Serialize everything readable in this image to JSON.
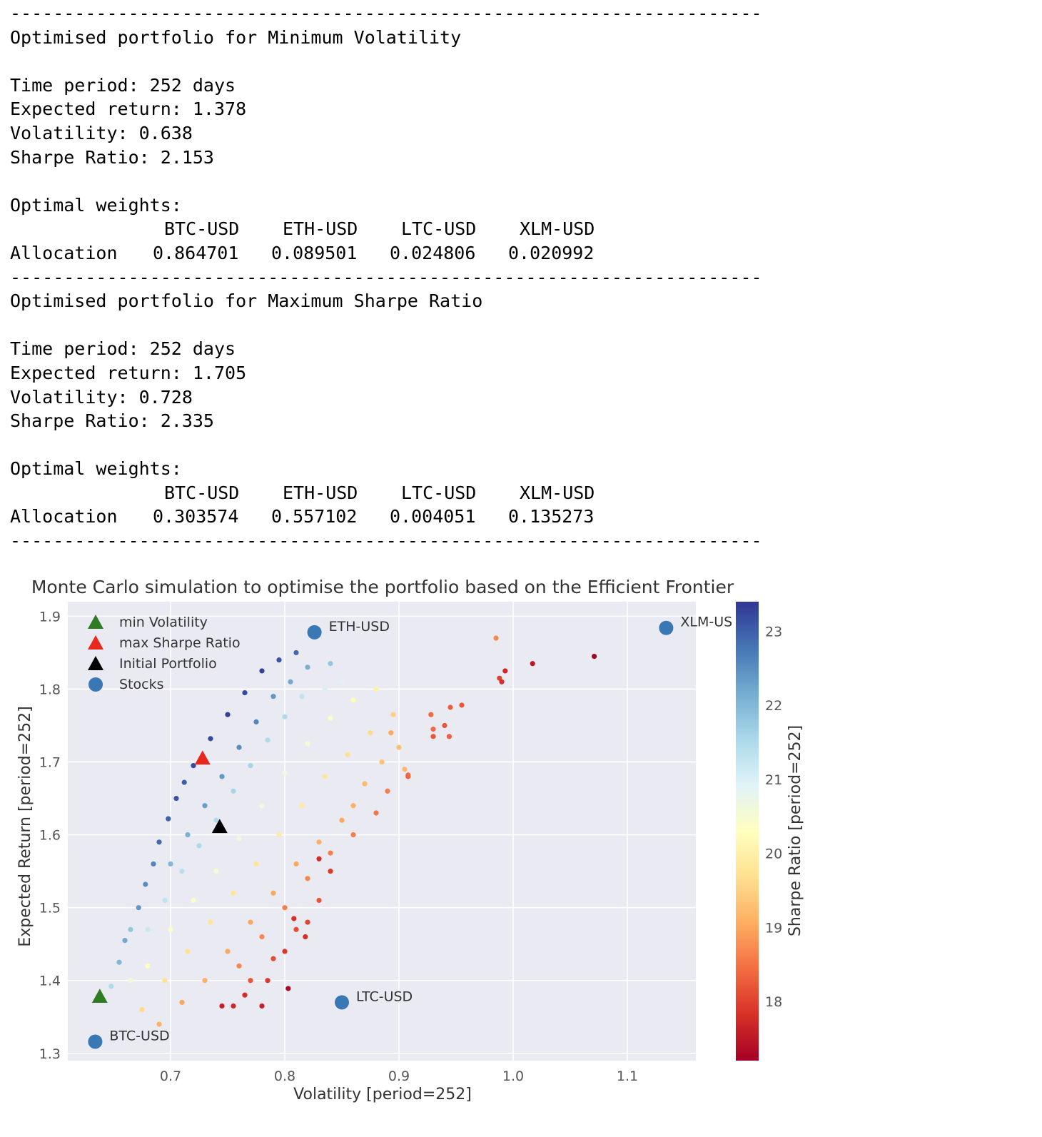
{
  "report": {
    "rule": "----------------------------------------------------------------------",
    "sections": [
      {
        "title": "Optimised portfolio for Minimum Volatility",
        "time_period": "Time period: 252 days",
        "expected_return": "Expected return: 1.378",
        "volatility": "Volatility: 0.638",
        "sharpe": "Sharpe Ratio: 2.153",
        "weights_label": "Optimal weights:",
        "columns": [
          "BTC-USD",
          "ETH-USD",
          "LTC-USD",
          "XLM-USD"
        ],
        "row_label": "Allocation",
        "values": [
          "0.864701",
          "0.089501",
          "0.024806",
          "0.020992"
        ]
      },
      {
        "title": "Optimised portfolio for Maximum Sharpe Ratio",
        "time_period": "Time period: 252 days",
        "expected_return": "Expected return: 1.705",
        "volatility": "Volatility: 0.728",
        "sharpe": "Sharpe Ratio: 2.335",
        "weights_label": "Optimal weights:",
        "columns": [
          "BTC-USD",
          "ETH-USD",
          "LTC-USD",
          "XLM-USD"
        ],
        "row_label": "Allocation",
        "values": [
          "0.303574",
          "0.557102",
          "0.004051",
          "0.135273"
        ]
      }
    ]
  },
  "chart_data": {
    "type": "scatter",
    "title": "Monte Carlo simulation to optimise the portfolio based on the Efficient Frontier",
    "xlabel": "Volatility [period=252]",
    "ylabel": "Expected Return [period=252]",
    "colorbar_label": "Sharpe Ratio [period=252]",
    "xlim": [
      0.61,
      1.16
    ],
    "ylim": [
      1.29,
      1.92
    ],
    "x_ticks": [
      "0.7",
      "0.8",
      "0.9",
      "1.0",
      "1.1"
    ],
    "y_ticks": [
      "1.3",
      "1.4",
      "1.5",
      "1.6",
      "1.7",
      "1.8",
      "1.9"
    ],
    "colorbar_ticks": [
      "18",
      "19",
      "20",
      "21",
      "22",
      "23"
    ],
    "colorbar_range": [
      17.2,
      23.4
    ],
    "colormap": [
      "#a50026",
      "#d73027",
      "#f46d43",
      "#fdae61",
      "#fee090",
      "#ffffbf",
      "#e0f3f8",
      "#abd9e9",
      "#74add1",
      "#4575b4",
      "#313695"
    ],
    "grid": true,
    "background": "#eaeaf2",
    "legend_position": "top-left",
    "legend": [
      {
        "label": "min Volatility",
        "marker": "triangle",
        "color": "#2e7d22"
      },
      {
        "label": "max Sharpe Ratio",
        "marker": "triangle",
        "color": "#e8281c"
      },
      {
        "label": "Initial Portfolio",
        "marker": "triangle",
        "color": "#000000"
      },
      {
        "label": "Stocks",
        "marker": "circle",
        "color": "#3a78b5"
      }
    ],
    "special_points": [
      {
        "name": "min Volatility",
        "x": 0.638,
        "y": 1.378,
        "color": "#2e7d22"
      },
      {
        "name": "max Sharpe Ratio",
        "x": 0.728,
        "y": 1.705,
        "color": "#e8281c"
      },
      {
        "name": "Initial Portfolio",
        "x": 0.743,
        "y": 1.611,
        "color": "#000000"
      }
    ],
    "stocks": [
      {
        "label": "BTC-USD",
        "x": 0.634,
        "y": 1.316
      },
      {
        "label": "ETH-USD",
        "x": 0.826,
        "y": 1.878
      },
      {
        "label": "LTC-USD",
        "x": 0.85,
        "y": 1.37
      },
      {
        "label": "XLM-US",
        "x": 1.134,
        "y": 1.884
      }
    ],
    "simulation": [
      {
        "x": 0.648,
        "y": 1.392,
        "sharpe": 21.5
      },
      {
        "x": 0.655,
        "y": 1.425,
        "sharpe": 22.0
      },
      {
        "x": 0.66,
        "y": 1.455,
        "sharpe": 22.2
      },
      {
        "x": 0.665,
        "y": 1.47,
        "sharpe": 21.8
      },
      {
        "x": 0.672,
        "y": 1.5,
        "sharpe": 22.4
      },
      {
        "x": 0.678,
        "y": 1.532,
        "sharpe": 22.5
      },
      {
        "x": 0.685,
        "y": 1.56,
        "sharpe": 22.6
      },
      {
        "x": 0.69,
        "y": 1.59,
        "sharpe": 22.9
      },
      {
        "x": 0.698,
        "y": 1.622,
        "sharpe": 23.0
      },
      {
        "x": 0.705,
        "y": 1.65,
        "sharpe": 23.1
      },
      {
        "x": 0.712,
        "y": 1.672,
        "sharpe": 23.0
      },
      {
        "x": 0.72,
        "y": 1.695,
        "sharpe": 23.2
      },
      {
        "x": 0.735,
        "y": 1.732,
        "sharpe": 23.2
      },
      {
        "x": 0.75,
        "y": 1.765,
        "sharpe": 23.3
      },
      {
        "x": 0.765,
        "y": 1.795,
        "sharpe": 23.2
      },
      {
        "x": 0.78,
        "y": 1.825,
        "sharpe": 23.3
      },
      {
        "x": 0.795,
        "y": 1.84,
        "sharpe": 23.1
      },
      {
        "x": 0.81,
        "y": 1.85,
        "sharpe": 22.9
      },
      {
        "x": 0.7,
        "y": 1.56,
        "sharpe": 22.0
      },
      {
        "x": 0.715,
        "y": 1.6,
        "sharpe": 22.1
      },
      {
        "x": 0.73,
        "y": 1.64,
        "sharpe": 22.3
      },
      {
        "x": 0.745,
        "y": 1.68,
        "sharpe": 22.4
      },
      {
        "x": 0.76,
        "y": 1.72,
        "sharpe": 22.5
      },
      {
        "x": 0.775,
        "y": 1.755,
        "sharpe": 22.6
      },
      {
        "x": 0.79,
        "y": 1.79,
        "sharpe": 22.4
      },
      {
        "x": 0.805,
        "y": 1.81,
        "sharpe": 22.2
      },
      {
        "x": 0.82,
        "y": 1.83,
        "sharpe": 22.1
      },
      {
        "x": 0.84,
        "y": 1.835,
        "sharpe": 21.8
      },
      {
        "x": 0.68,
        "y": 1.47,
        "sharpe": 21.2
      },
      {
        "x": 0.695,
        "y": 1.51,
        "sharpe": 21.3
      },
      {
        "x": 0.71,
        "y": 1.55,
        "sharpe": 21.4
      },
      {
        "x": 0.725,
        "y": 1.585,
        "sharpe": 21.5
      },
      {
        "x": 0.74,
        "y": 1.62,
        "sharpe": 21.5
      },
      {
        "x": 0.755,
        "y": 1.66,
        "sharpe": 21.6
      },
      {
        "x": 0.77,
        "y": 1.695,
        "sharpe": 21.6
      },
      {
        "x": 0.785,
        "y": 1.73,
        "sharpe": 21.5
      },
      {
        "x": 0.8,
        "y": 1.762,
        "sharpe": 21.5
      },
      {
        "x": 0.815,
        "y": 1.79,
        "sharpe": 21.3
      },
      {
        "x": 0.835,
        "y": 1.8,
        "sharpe": 21.0
      },
      {
        "x": 0.85,
        "y": 1.81,
        "sharpe": 20.9
      },
      {
        "x": 0.665,
        "y": 1.4,
        "sharpe": 20.6
      },
      {
        "x": 0.68,
        "y": 1.42,
        "sharpe": 20.3
      },
      {
        "x": 0.7,
        "y": 1.47,
        "sharpe": 20.4
      },
      {
        "x": 0.72,
        "y": 1.51,
        "sharpe": 20.4
      },
      {
        "x": 0.74,
        "y": 1.55,
        "sharpe": 20.5
      },
      {
        "x": 0.76,
        "y": 1.595,
        "sharpe": 20.6
      },
      {
        "x": 0.78,
        "y": 1.64,
        "sharpe": 20.6
      },
      {
        "x": 0.8,
        "y": 1.685,
        "sharpe": 20.6
      },
      {
        "x": 0.82,
        "y": 1.725,
        "sharpe": 20.5
      },
      {
        "x": 0.84,
        "y": 1.76,
        "sharpe": 20.4
      },
      {
        "x": 0.86,
        "y": 1.785,
        "sharpe": 20.2
      },
      {
        "x": 0.88,
        "y": 1.8,
        "sharpe": 20.0
      },
      {
        "x": 0.675,
        "y": 1.36,
        "sharpe": 19.6
      },
      {
        "x": 0.695,
        "y": 1.4,
        "sharpe": 19.7
      },
      {
        "x": 0.715,
        "y": 1.44,
        "sharpe": 19.7
      },
      {
        "x": 0.735,
        "y": 1.48,
        "sharpe": 19.8
      },
      {
        "x": 0.755,
        "y": 1.52,
        "sharpe": 19.8
      },
      {
        "x": 0.775,
        "y": 1.56,
        "sharpe": 19.8
      },
      {
        "x": 0.795,
        "y": 1.6,
        "sharpe": 19.9
      },
      {
        "x": 0.815,
        "y": 1.64,
        "sharpe": 19.9
      },
      {
        "x": 0.835,
        "y": 1.68,
        "sharpe": 19.8
      },
      {
        "x": 0.855,
        "y": 1.71,
        "sharpe": 19.7
      },
      {
        "x": 0.875,
        "y": 1.74,
        "sharpe": 19.6
      },
      {
        "x": 0.895,
        "y": 1.765,
        "sharpe": 19.5
      },
      {
        "x": 0.9,
        "y": 1.72,
        "sharpe": 19.3
      },
      {
        "x": 0.905,
        "y": 1.69,
        "sharpe": 19.2
      },
      {
        "x": 0.885,
        "y": 1.7,
        "sharpe": 19.3
      },
      {
        "x": 0.87,
        "y": 1.67,
        "sharpe": 19.2
      },
      {
        "x": 0.86,
        "y": 1.64,
        "sharpe": 19.1
      },
      {
        "x": 0.85,
        "y": 1.62,
        "sharpe": 19.0
      },
      {
        "x": 0.83,
        "y": 1.59,
        "sharpe": 19.1
      },
      {
        "x": 0.81,
        "y": 1.56,
        "sharpe": 19.0
      },
      {
        "x": 0.79,
        "y": 1.52,
        "sharpe": 19.0
      },
      {
        "x": 0.77,
        "y": 1.48,
        "sharpe": 19.0
      },
      {
        "x": 0.75,
        "y": 1.44,
        "sharpe": 19.0
      },
      {
        "x": 0.73,
        "y": 1.4,
        "sharpe": 19.1
      },
      {
        "x": 0.71,
        "y": 1.37,
        "sharpe": 19.0
      },
      {
        "x": 0.69,
        "y": 1.34,
        "sharpe": 19.1
      },
      {
        "x": 0.76,
        "y": 1.42,
        "sharpe": 18.7
      },
      {
        "x": 0.78,
        "y": 1.46,
        "sharpe": 18.7
      },
      {
        "x": 0.8,
        "y": 1.5,
        "sharpe": 18.6
      },
      {
        "x": 0.82,
        "y": 1.54,
        "sharpe": 18.7
      },
      {
        "x": 0.84,
        "y": 1.575,
        "sharpe": 18.6
      },
      {
        "x": 0.86,
        "y": 1.6,
        "sharpe": 18.6
      },
      {
        "x": 0.88,
        "y": 1.63,
        "sharpe": 18.5
      },
      {
        "x": 0.89,
        "y": 1.66,
        "sharpe": 18.6
      },
      {
        "x": 0.908,
        "y": 1.68,
        "sharpe": 18.3
      },
      {
        "x": 0.93,
        "y": 1.735,
        "sharpe": 18.2
      },
      {
        "x": 0.94,
        "y": 1.75,
        "sharpe": 18.2
      },
      {
        "x": 0.945,
        "y": 1.775,
        "sharpe": 18.3
      },
      {
        "x": 0.955,
        "y": 1.778,
        "sharpe": 18.2
      },
      {
        "x": 0.928,
        "y": 1.765,
        "sharpe": 18.4
      },
      {
        "x": 0.93,
        "y": 1.745,
        "sharpe": 18.4
      },
      {
        "x": 0.944,
        "y": 1.735,
        "sharpe": 18.3
      },
      {
        "x": 0.77,
        "y": 1.4,
        "sharpe": 18.2
      },
      {
        "x": 0.79,
        "y": 1.43,
        "sharpe": 18.1
      },
      {
        "x": 0.81,
        "y": 1.47,
        "sharpe": 18.1
      },
      {
        "x": 0.83,
        "y": 1.51,
        "sharpe": 18.2
      },
      {
        "x": 0.82,
        "y": 1.48,
        "sharpe": 18.0
      },
      {
        "x": 0.8,
        "y": 1.44,
        "sharpe": 17.9
      },
      {
        "x": 0.785,
        "y": 1.4,
        "sharpe": 17.9
      },
      {
        "x": 0.765,
        "y": 1.38,
        "sharpe": 17.8
      },
      {
        "x": 0.755,
        "y": 1.365,
        "sharpe": 17.7
      },
      {
        "x": 0.745,
        "y": 1.365,
        "sharpe": 17.6
      },
      {
        "x": 0.78,
        "y": 1.365,
        "sharpe": 17.6
      },
      {
        "x": 0.803,
        "y": 1.389,
        "sharpe": 17.3
      },
      {
        "x": 0.83,
        "y": 1.567,
        "sharpe": 17.8
      },
      {
        "x": 0.84,
        "y": 1.55,
        "sharpe": 17.9
      },
      {
        "x": 0.818,
        "y": 1.46,
        "sharpe": 17.8
      },
      {
        "x": 0.808,
        "y": 1.485,
        "sharpe": 17.8
      },
      {
        "x": 0.985,
        "y": 1.87,
        "sharpe": 18.7
      },
      {
        "x": 0.988,
        "y": 1.815,
        "sharpe": 18.0
      },
      {
        "x": 0.99,
        "y": 1.81,
        "sharpe": 17.8
      },
      {
        "x": 0.993,
        "y": 1.825,
        "sharpe": 17.7
      },
      {
        "x": 1.017,
        "y": 1.835,
        "sharpe": 17.5
      },
      {
        "x": 1.071,
        "y": 1.845,
        "sharpe": 17.2
      },
      {
        "x": 0.908,
        "y": 1.682,
        "sharpe": 18.4
      },
      {
        "x": 0.893,
        "y": 1.74,
        "sharpe": 19.0
      }
    ]
  }
}
